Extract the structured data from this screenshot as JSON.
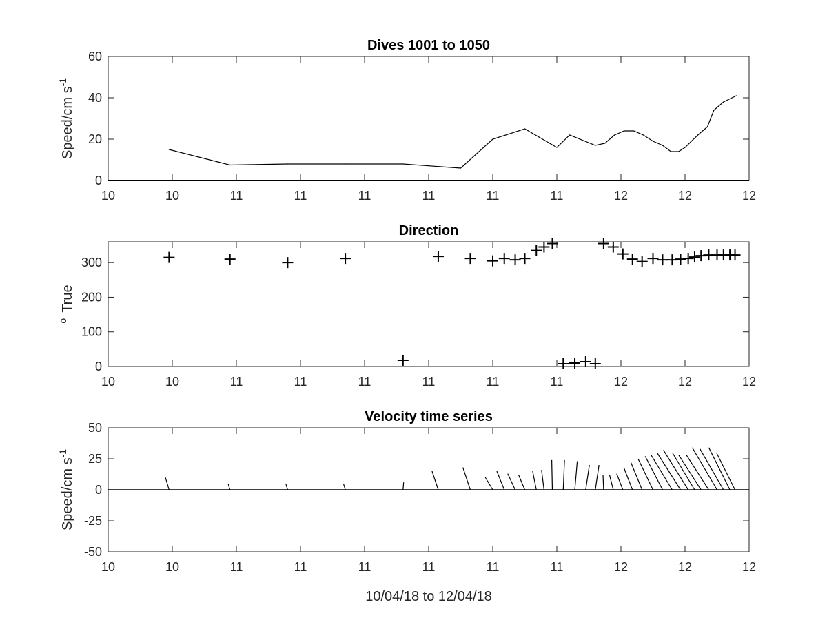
{
  "xtick_labels": [
    "10",
    "10",
    "11",
    "11",
    "11",
    "11",
    "11",
    "11",
    "12",
    "12",
    "12"
  ],
  "chart_data": [
    {
      "type": "line",
      "title": "Dives 1001 to 1050",
      "ylabel": "Speed/cm s",
      "ylabel_sup": "-1",
      "xlim": [
        0,
        10
      ],
      "ylim": [
        0,
        60
      ],
      "yticks": [
        0,
        20,
        40,
        60
      ],
      "xticklabels": [
        "10",
        "10",
        "11",
        "11",
        "11",
        "11",
        "11",
        "11",
        "12",
        "12",
        "12"
      ],
      "series": [
        {
          "x": [
            0.95,
            1.9,
            2.8,
            3.7,
            4.6,
            5.5,
            6.0,
            6.5,
            7.0,
            7.2,
            7.6,
            7.75,
            7.9,
            8.05,
            8.2,
            8.35,
            8.5,
            8.65,
            8.78,
            8.9,
            9.0,
            9.2,
            9.35,
            9.45,
            9.6,
            9.8
          ],
          "values": [
            15,
            7.5,
            8,
            8,
            8,
            6,
            20,
            25,
            16,
            22,
            17,
            18,
            22,
            24,
            24,
            22,
            19,
            17,
            14,
            14,
            16,
            22,
            26,
            34,
            38,
            41
          ]
        }
      ]
    },
    {
      "type": "scatter",
      "title": "Direction",
      "ylabel": "True",
      "ylabel_sup": "o",
      "xlim": [
        0,
        10
      ],
      "ylim": [
        0,
        360
      ],
      "yticks": [
        0,
        100,
        200,
        300
      ],
      "xticklabels": [
        "10",
        "10",
        "11",
        "11",
        "11",
        "11",
        "11",
        "11",
        "12",
        "12",
        "12"
      ],
      "marker": "+",
      "x": [
        0.95,
        1.9,
        2.8,
        3.7,
        4.6,
        5.15,
        5.65,
        6.0,
        6.18,
        6.35,
        6.5,
        6.68,
        6.8,
        6.93,
        7.1,
        7.28,
        7.45,
        7.6,
        7.73,
        7.88,
        8.03,
        8.18,
        8.33,
        8.5,
        8.65,
        8.8,
        8.93,
        9.05,
        9.15,
        9.25,
        9.37,
        9.5,
        9.6,
        9.7,
        9.78
      ],
      "y": [
        315,
        310,
        300,
        312,
        18,
        318,
        312,
        305,
        312,
        308,
        312,
        335,
        345,
        355,
        8,
        10,
        14,
        8,
        355,
        345,
        325,
        310,
        303,
        312,
        308,
        308,
        310,
        312,
        316,
        320,
        322,
        322,
        322,
        322,
        322
      ]
    },
    {
      "type": "stick",
      "title": "Velocity time series",
      "ylabel": "Speed/cm s",
      "ylabel_sup": "-1",
      "xlabel": "10/04/18 to 12/04/18",
      "xlim": [
        0,
        10
      ],
      "ylim": [
        -50,
        50
      ],
      "yticks": [
        -50,
        -25,
        0,
        25,
        50
      ],
      "xticklabels": [
        "10",
        "10",
        "11",
        "11",
        "11",
        "11",
        "11",
        "11",
        "12",
        "12",
        "12"
      ],
      "x": [
        0.95,
        1.9,
        2.8,
        3.7,
        4.6,
        5.15,
        5.65,
        6.0,
        6.18,
        6.35,
        6.5,
        6.68,
        6.8,
        6.93,
        7.1,
        7.28,
        7.45,
        7.6,
        7.73,
        7.88,
        8.03,
        8.18,
        8.33,
        8.5,
        8.65,
        8.8,
        8.93,
        9.05,
        9.15,
        9.25,
        9.37,
        9.5,
        9.6,
        9.7,
        9.78
      ],
      "u": [
        -3,
        -1.5,
        -1.5,
        -1.5,
        0.5,
        -5,
        -6,
        -6,
        -6,
        -6,
        -5,
        -3,
        -2,
        -0.5,
        1,
        2,
        3,
        3,
        -0.5,
        -3,
        -5,
        -7,
        -9,
        -12,
        -14,
        -17,
        -19,
        -20,
        -18,
        -18,
        -18,
        -20,
        -19,
        -17,
        -15
      ],
      "v": [
        10,
        5,
        5,
        5,
        6,
        15,
        18,
        10,
        15,
        13,
        12,
        15,
        16,
        24,
        24,
        23,
        20,
        20,
        12,
        12,
        13,
        18,
        22,
        25,
        27,
        28,
        30,
        32,
        30,
        28,
        28,
        34,
        33,
        34,
        30
      ]
    }
  ]
}
